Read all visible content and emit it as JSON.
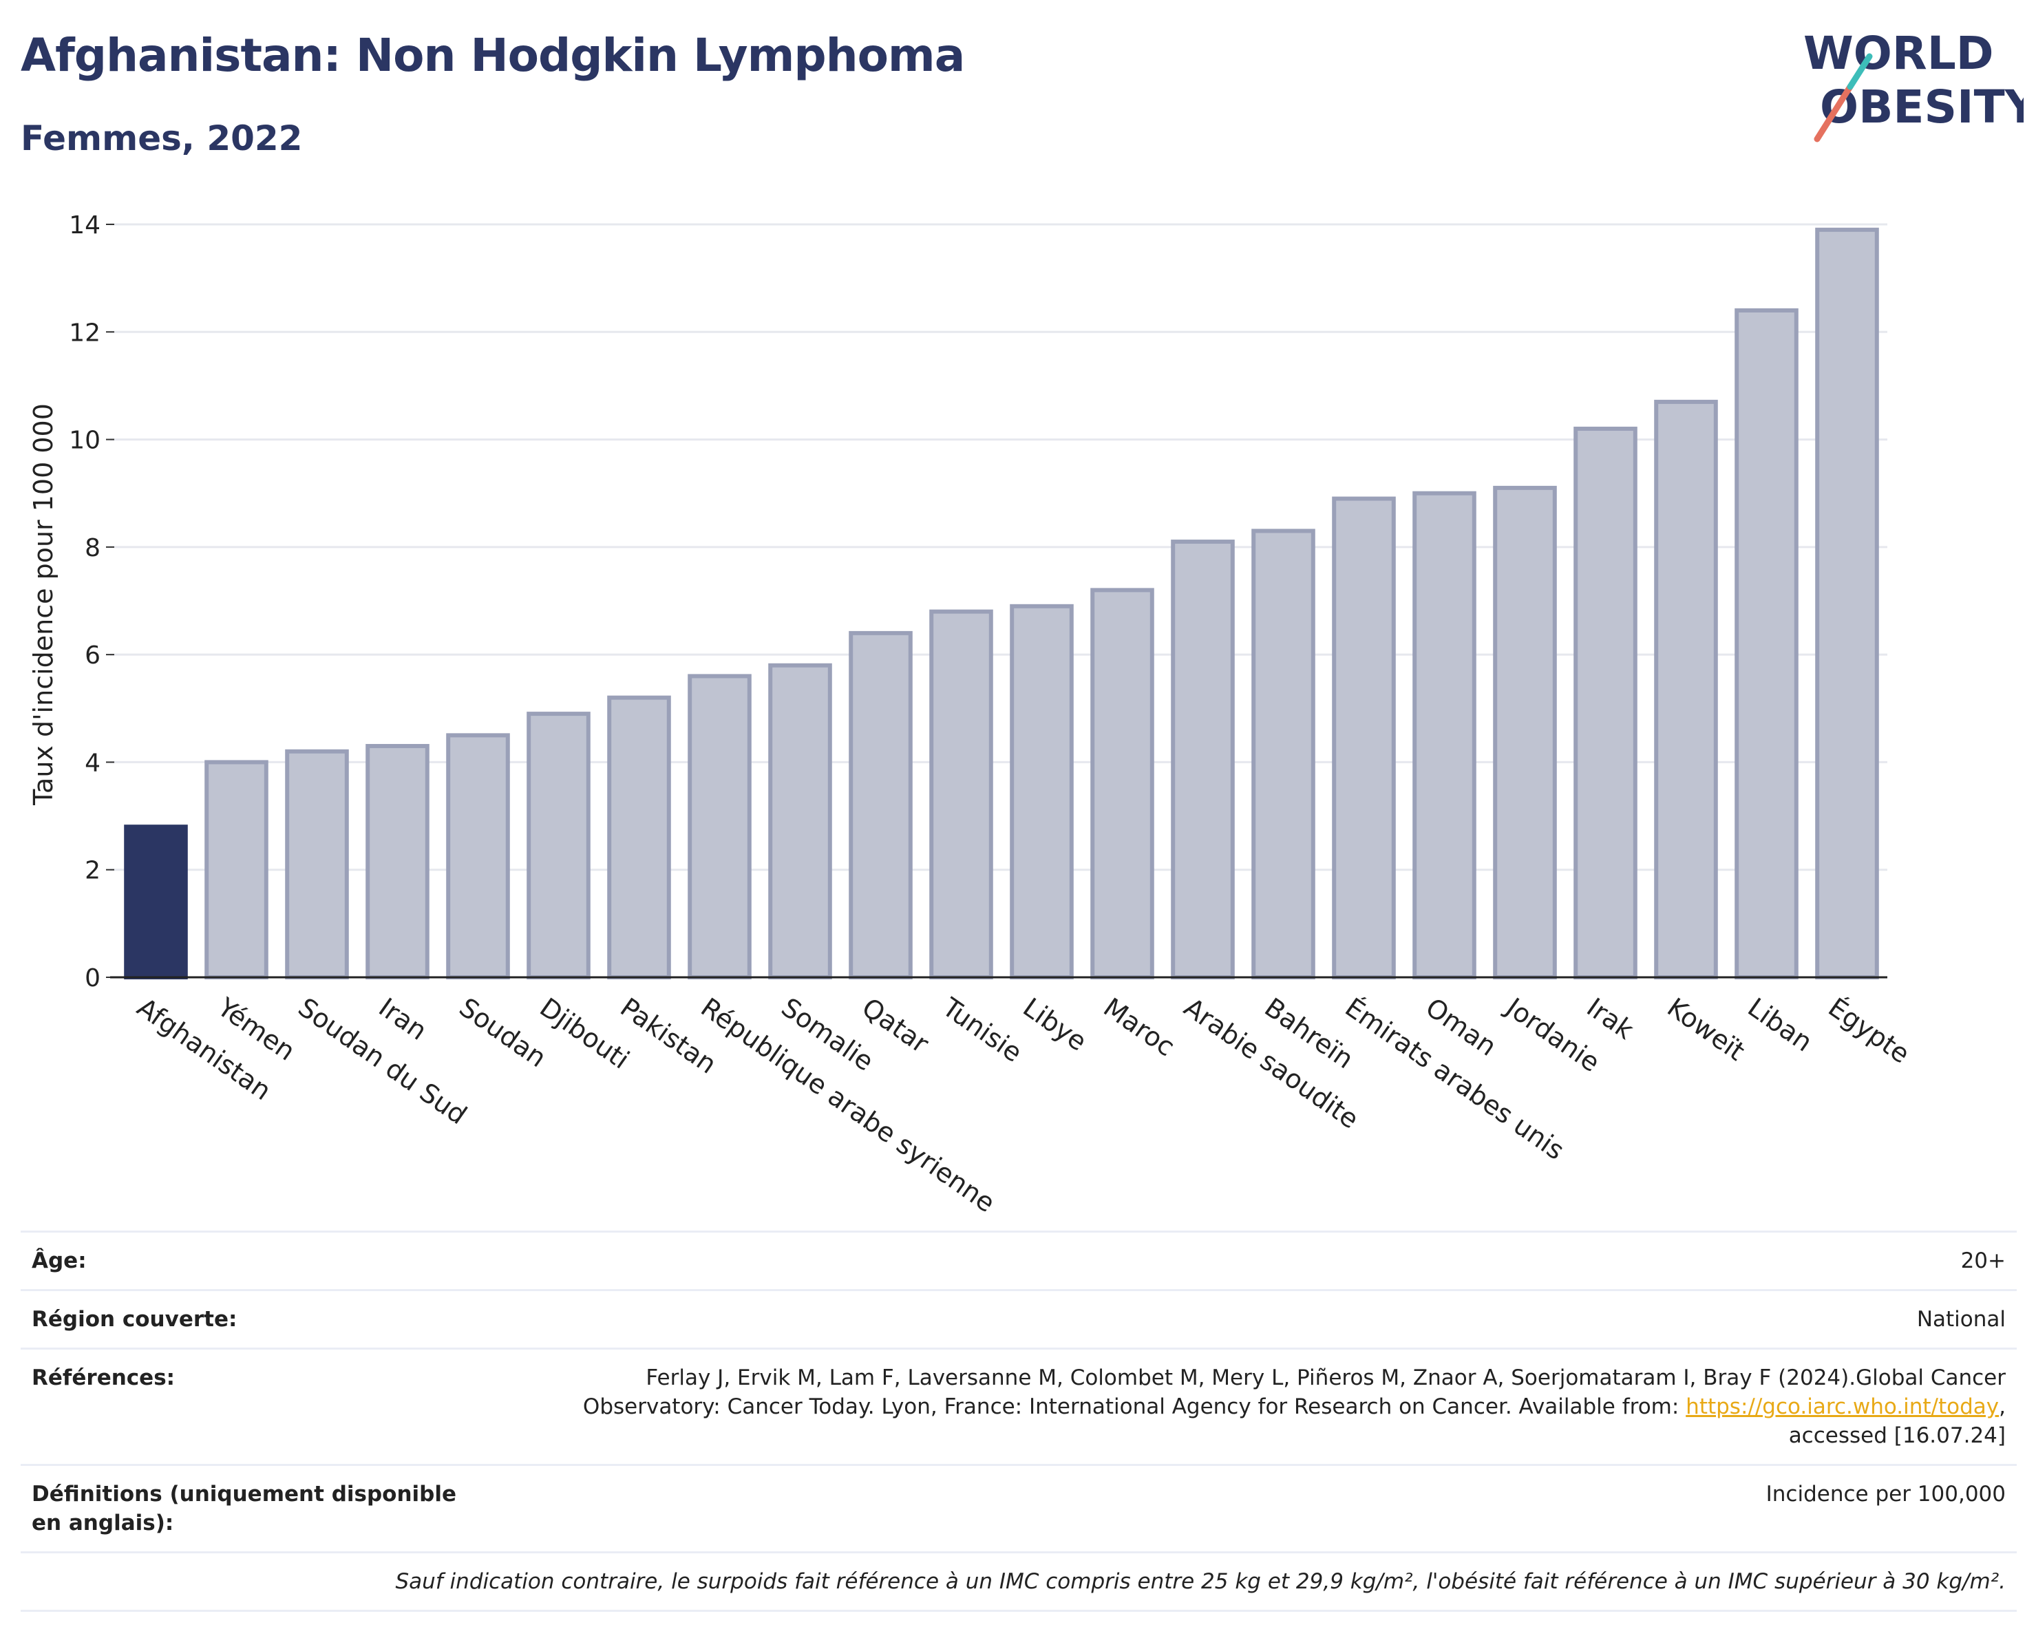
{
  "header": {
    "title": "Afghanistan: Non Hodgkin Lymphoma",
    "subtitle": "Femmes, 2022"
  },
  "logo": {
    "line1": "WORLD",
    "line2": "OBESITY",
    "colors": [
      "#2b3663",
      "#e5715f",
      "#3dbdb9"
    ]
  },
  "chart_data": {
    "type": "bar",
    "ylabel": "Taux d'incidence pour 100 000",
    "ylim": [
      0,
      14
    ],
    "yticks": [
      0,
      2,
      4,
      6,
      8,
      10,
      12,
      14
    ],
    "grid": true,
    "highlight_color": "#2b3663",
    "bar_color": "#bfc3d1",
    "bar_edge_color": "#9aa0b8",
    "categories": [
      "Afghanistan",
      "Yémen",
      "Soudan du Sud",
      "Iran",
      "Soudan",
      "Djibouti",
      "Pakistan",
      "République arabe syrienne",
      "Somalie",
      "Qatar",
      "Tunisie",
      "Libye",
      "Maroc",
      "Arabie saoudite",
      "Bahreïn",
      "Émirats arabes unis",
      "Oman",
      "Jordanie",
      "Irak",
      "Koweït",
      "Liban",
      "Égypte"
    ],
    "values": [
      2.8,
      4.0,
      4.2,
      4.3,
      4.5,
      4.9,
      5.2,
      5.6,
      5.8,
      6.4,
      6.8,
      6.9,
      7.2,
      8.1,
      8.3,
      8.9,
      9.0,
      9.1,
      10.2,
      10.7,
      12.4,
      13.9
    ],
    "highlight_index": 0
  },
  "info": {
    "age_label": "Âge:",
    "age_value": "20+",
    "region_label": "Région couverte:",
    "region_value": "National",
    "refs_label": "Références:",
    "refs_text_1": "Ferlay J, Ervik M, Lam F, Laversanne M, Colombet M, Mery L, Piñeros M, Znaor A, Soerjomataram I, Bray F (2024).Global Cancer Observatory: Cancer Today. Lyon, France: International Agency for Research on Cancer. Available from: ",
    "refs_link": "https://gco.iarc.who.int/today",
    "refs_text_2": ", accessed [16.07.24]",
    "defs_label": "Définitions (uniquement disponible en anglais):",
    "defs_value": "Incidence per 100,000",
    "note": "Sauf indication contraire, le surpoids fait référence à un IMC compris entre 25 kg et 29,9 kg/m², l'obésité fait référence à un IMC supérieur à 30 kg/m²."
  }
}
